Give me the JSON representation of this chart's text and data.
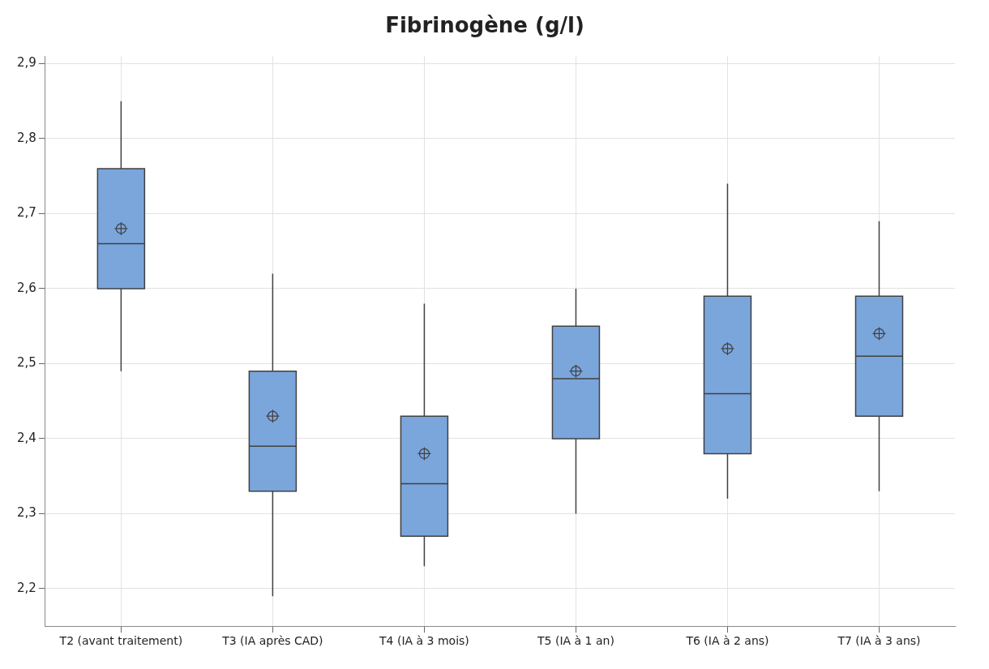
{
  "chart_data": {
    "type": "box",
    "title": "Fibrinogène (g/l)",
    "categories": [
      "T2 (avant traitement)",
      "T3 (IA après CAD)",
      "T4 (IA à 3 mois)",
      "T5 (IA à 1 an)",
      "T6 (IA à 2 ans)",
      "T7 (IA à 3 ans)"
    ],
    "boxes": [
      {
        "low": 2.49,
        "q1": 2.6,
        "median": 2.66,
        "q3": 2.76,
        "high": 2.85,
        "mean": 2.68
      },
      {
        "low": 2.19,
        "q1": 2.33,
        "median": 2.39,
        "q3": 2.49,
        "high": 2.62,
        "mean": 2.43
      },
      {
        "low": 2.23,
        "q1": 2.27,
        "median": 2.34,
        "q3": 2.43,
        "high": 2.58,
        "mean": 2.38
      },
      {
        "low": 2.3,
        "q1": 2.4,
        "median": 2.48,
        "q3": 2.55,
        "high": 2.6,
        "mean": 2.49
      },
      {
        "low": 2.32,
        "q1": 2.38,
        "median": 2.46,
        "q3": 2.59,
        "high": 2.74,
        "mean": 2.52
      },
      {
        "low": 2.33,
        "q1": 2.43,
        "median": 2.51,
        "q3": 2.59,
        "high": 2.69,
        "mean": 2.54
      }
    ],
    "color": "#7aa6dc",
    "ylim": [
      2.15,
      2.91
    ],
    "yticks": [
      {
        "value": 2.2,
        "label": "2,2"
      },
      {
        "value": 2.3,
        "label": "2,3"
      },
      {
        "value": 2.4,
        "label": "2,4"
      },
      {
        "value": 2.5,
        "label": "2,5"
      },
      {
        "value": 2.6,
        "label": "2,6"
      },
      {
        "value": 2.7,
        "label": "2,7"
      },
      {
        "value": 2.8,
        "label": "2,8"
      },
      {
        "value": 2.9,
        "label": "2,9"
      }
    ],
    "grid": true
  }
}
